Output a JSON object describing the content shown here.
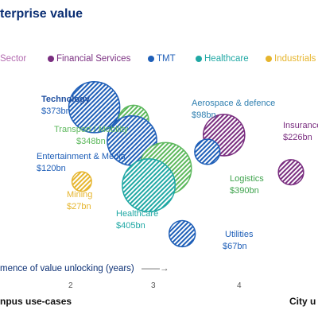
{
  "title": "terprise value",
  "legend": [
    {
      "label": "Sector",
      "color": "#b36bb0",
      "dot": false
    },
    {
      "label": "Financial Services",
      "color": "#7a2e80",
      "dot": true
    },
    {
      "label": "TMT",
      "color": "#1f5fb8",
      "dot": true
    },
    {
      "label": "Healthcare",
      "color": "#20a8a4",
      "dot": true
    },
    {
      "label": "Industrials",
      "color": "#e6b52e",
      "dot": true
    }
  ],
  "axis": {
    "title": "mence of value unlocking (years)",
    "ticks": [
      "2",
      "3",
      "4"
    ],
    "left_label": "npus use-cases",
    "right_label": "City u"
  },
  "chart_data": {
    "type": "scatter",
    "title": "terprise value",
    "xlabel": "mence of value unlocking (years)",
    "xlim": [
      1.2,
      5.0
    ],
    "ylim": [
      0,
      1
    ],
    "x_ticks": [
      2,
      3,
      4
    ],
    "grid": false,
    "legend_position": "top",
    "points": [
      {
        "name": "Technology",
        "value": "$373bn",
        "x": 2.65,
        "y": 0.8,
        "size": 373,
        "group": "TMT",
        "color": "#1f5fb8",
        "label_color": "#1f5fb8"
      },
      {
        "name": "Aerospace & defence",
        "value": "$98bn",
        "x": 3.12,
        "y": 0.73,
        "size": 98,
        "group": "Industrials",
        "color": "#5cb85c",
        "label_color": "#2f7fb0"
      },
      {
        "name": "Transport / Mobility",
        "value": "$348bn",
        "x": 3.1,
        "y": 0.62,
        "size": 348,
        "group": "TMT",
        "color": "#1f5fb8",
        "label_color": "#5cb85c"
      },
      {
        "name": "Insurance",
        "value": "$226bn",
        "x": 4.2,
        "y": 0.65,
        "size": 226,
        "group": "Financial Services",
        "color": "#7a2e80",
        "label_color": "#7a2e80"
      },
      {
        "name": "Entertainment & Media",
        "value": "$120bn",
        "x": 0.8,
        "y": 0.45,
        "size": 120,
        "group": "Industrials",
        "color": "#e6b52e",
        "label_color": "#1f5fb8"
      },
      {
        "name": "Mining",
        "value": "$27bn",
        "x": 2.5,
        "y": 0.4,
        "size": 27,
        "group": "Industrials",
        "color": "#e6b52e",
        "label_color": "#e6b52e"
      },
      {
        "name": "Logistics",
        "value": "$390bn",
        "x": 3.5,
        "y": 0.47,
        "size": 390,
        "group": "Industrials",
        "color": "#5cb85c",
        "label_color": "#3fa34d"
      },
      {
        "name": "Healthcare",
        "value": "$405bn",
        "x": 3.3,
        "y": 0.38,
        "size": 405,
        "group": "Healthcare",
        "color": "#20a8a4",
        "label_color": "#20a8a4"
      },
      {
        "name": "Utilities",
        "value": "$67bn",
        "x": 3.7,
        "y": 0.12,
        "size": 67,
        "group": "TMT",
        "color": "#1f5fb8",
        "label_color": "#1f5fb8"
      },
      {
        "name": "",
        "value": "",
        "x": 4.0,
        "y": 0.56,
        "size": 60,
        "group": "TMT",
        "color": "#1f5fb8",
        "label_color": "#1f5fb8"
      },
      {
        "name": "",
        "value": "",
        "x": 5.0,
        "y": 0.45,
        "size": 60,
        "group": "Financial Services",
        "color": "#7a2e80",
        "label_color": "#7a2e80"
      }
    ]
  }
}
